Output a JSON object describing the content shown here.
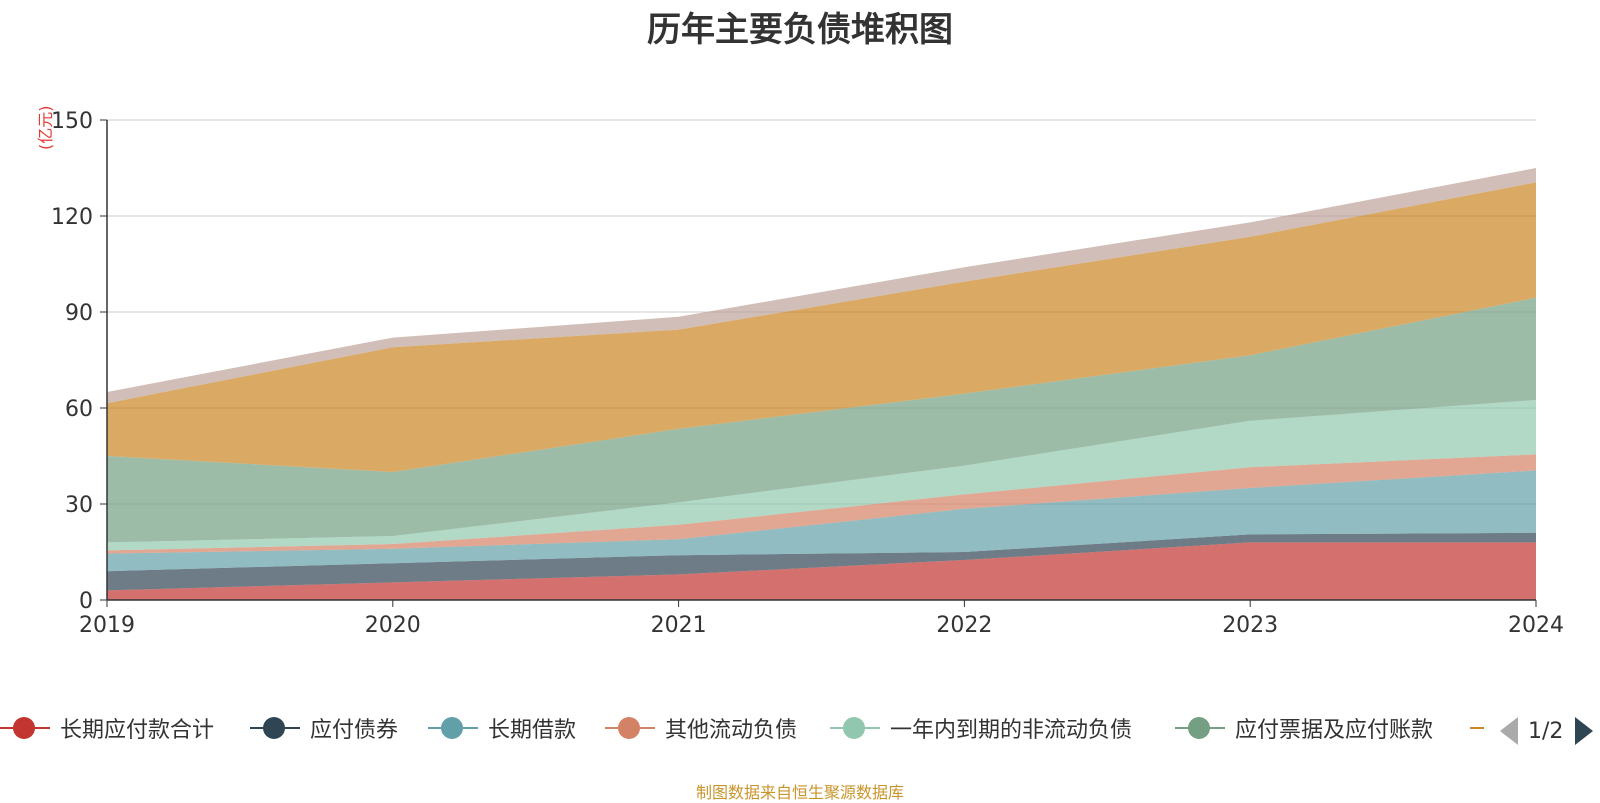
{
  "title": "历年主要负债堆积图",
  "unit_label": "(亿元)",
  "source": "制图数据来自恒生聚源数据库",
  "pager": "1/2",
  "colors": [
    "#c23531",
    "#2f4554",
    "#61a0a8",
    "#d48265",
    "#91c7ae",
    "#749f83",
    "#ca8622",
    "#bda29a"
  ],
  "chart_data": {
    "type": "area",
    "stacked": true,
    "categories": [
      "2019",
      "2020",
      "2021",
      "2022",
      "2023",
      "2024"
    ],
    "ylim": [
      0,
      150
    ],
    "yticks": [
      0,
      30,
      60,
      90,
      120,
      150
    ],
    "grid": true,
    "legend_position": "bottom",
    "series": [
      {
        "name": "长期应付款合计",
        "values": [
          3,
          5.5,
          8,
          12.5,
          18,
          18
        ]
      },
      {
        "name": "应付债券",
        "values": [
          6,
          6,
          6,
          2.5,
          2.5,
          3
        ]
      },
      {
        "name": "长期借款",
        "values": [
          5.5,
          4.5,
          5,
          13.5,
          14.5,
          19.5
        ]
      },
      {
        "name": "其他流动负债",
        "values": [
          1,
          1.5,
          4.5,
          4.5,
          6.5,
          5
        ]
      },
      {
        "name": "一年内到期的非流动负债",
        "values": [
          2.5,
          2.5,
          7,
          9,
          14.5,
          17
        ]
      },
      {
        "name": "应付票据及应付账款",
        "values": [
          27,
          20,
          23,
          22.5,
          20.5,
          32
        ]
      },
      {
        "name": "",
        "values": [
          16.5,
          39,
          31,
          35,
          37,
          36
        ]
      },
      {
        "name": "",
        "values": [
          3.5,
          3,
          4,
          4.5,
          4.5,
          4.5
        ]
      }
    ]
  }
}
